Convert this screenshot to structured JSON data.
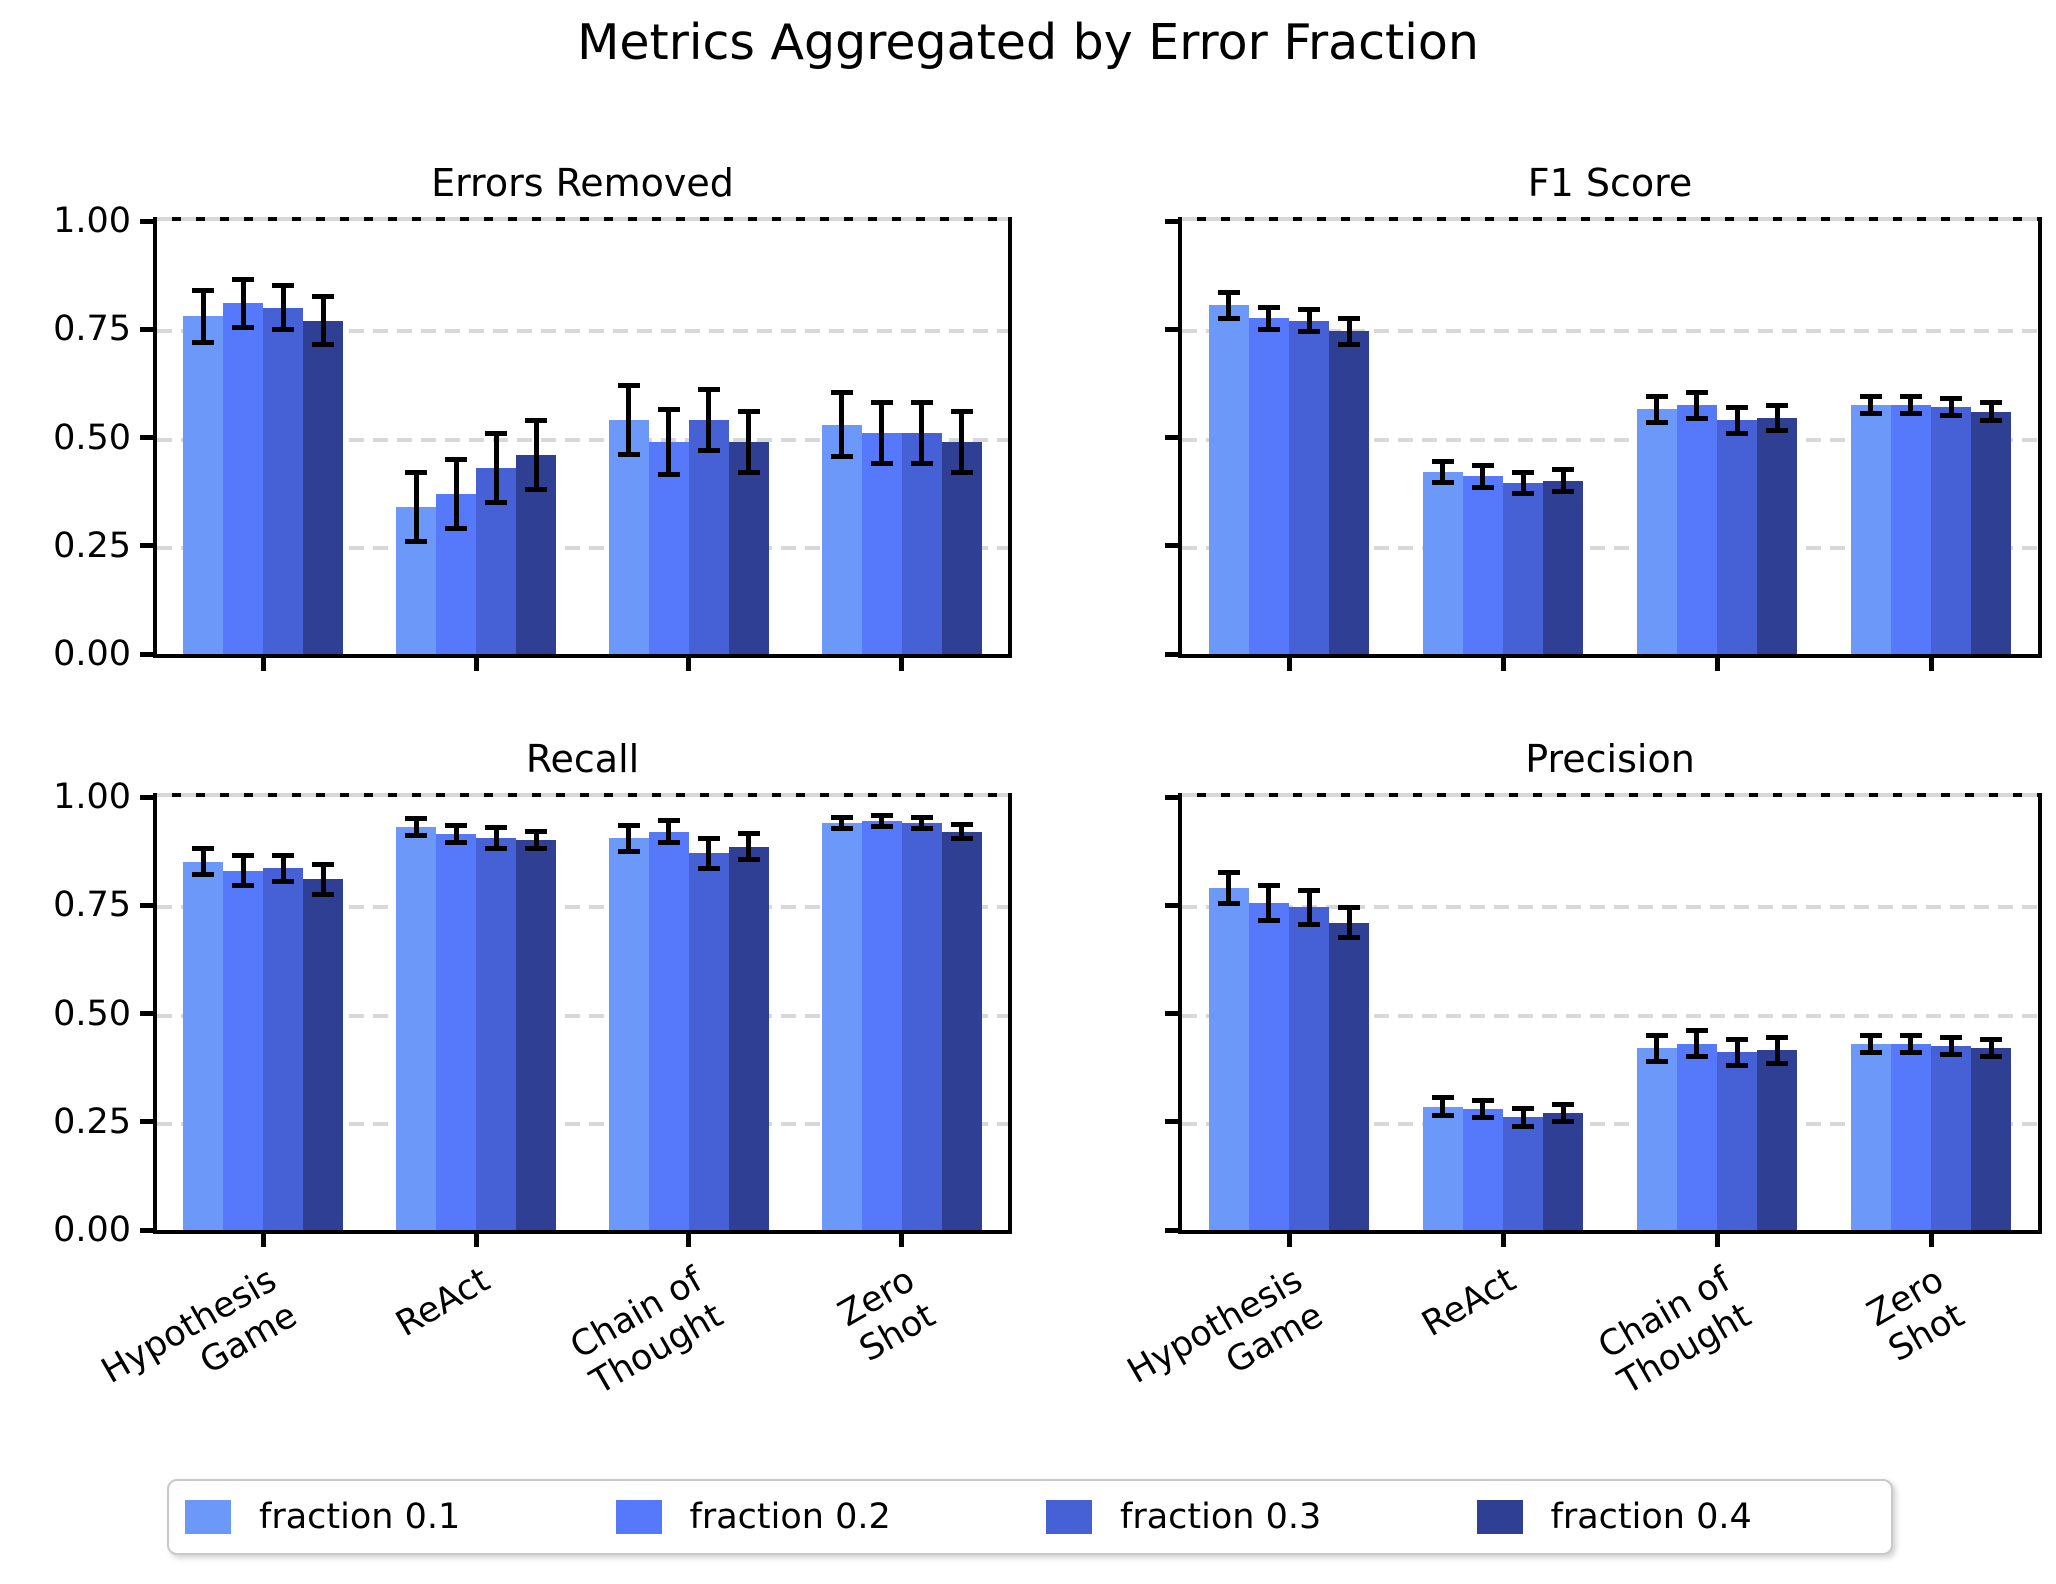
{
  "page_title": "Metrics Aggregated by Error Fraction",
  "colors": {
    "fractions": [
      "#6C98FA",
      "#5678FB",
      "#4661D6",
      "#2F4094"
    ],
    "grid": "#D8D8D8",
    "error_bar": "#000000",
    "spine": "#000000"
  },
  "axes": {
    "y_ticks": [
      "0.00",
      "0.25",
      "0.50",
      "0.75",
      "1.00"
    ],
    "ylim": [
      0,
      1
    ],
    "grid": "horizontal-dashed"
  },
  "categories": [
    "Hypothesis\nGame",
    "ReAct",
    "Chain of\nThought",
    "Zero\nShot"
  ],
  "legend": {
    "position": "bottom-center",
    "items": [
      {
        "label": "fraction 0.1",
        "color": "#6C98FA"
      },
      {
        "label": "fraction 0.2",
        "color": "#5678FB"
      },
      {
        "label": "fraction 0.3",
        "color": "#4661D6"
      },
      {
        "label": "fraction 0.4",
        "color": "#2F4094"
      }
    ]
  },
  "chart_data": [
    {
      "type": "bar",
      "title": "Errors Removed",
      "position": "top-left",
      "categories": [
        "Hypothesis\nGame",
        "ReAct",
        "Chain of\nThought",
        "Zero\nShot"
      ],
      "ylim": [
        0,
        1
      ],
      "series": [
        {
          "name": "fraction 0.1",
          "values": [
            0.78,
            0.34,
            0.54,
            0.53
          ],
          "errors": [
            0.06,
            0.08,
            0.08,
            0.075
          ]
        },
        {
          "name": "fraction 0.2",
          "values": [
            0.81,
            0.37,
            0.49,
            0.51
          ],
          "errors": [
            0.055,
            0.08,
            0.075,
            0.07
          ]
        },
        {
          "name": "fraction 0.3",
          "values": [
            0.8,
            0.43,
            0.54,
            0.51
          ],
          "errors": [
            0.05,
            0.08,
            0.07,
            0.07
          ]
        },
        {
          "name": "fraction 0.4",
          "values": [
            0.77,
            0.46,
            0.49,
            0.49
          ],
          "errors": [
            0.055,
            0.08,
            0.07,
            0.07
          ]
        }
      ]
    },
    {
      "type": "bar",
      "title": "F1 Score",
      "position": "top-right",
      "categories": [
        "Hypothesis\nGame",
        "ReAct",
        "Chain of\nThought",
        "Zero\nShot"
      ],
      "ylim": [
        0,
        1
      ],
      "series": [
        {
          "name": "fraction 0.1",
          "values": [
            0.805,
            0.42,
            0.565,
            0.575
          ],
          "errors": [
            0.03,
            0.025,
            0.03,
            0.02
          ]
        },
        {
          "name": "fraction 0.2",
          "values": [
            0.775,
            0.41,
            0.575,
            0.575
          ],
          "errors": [
            0.025,
            0.025,
            0.03,
            0.02
          ]
        },
        {
          "name": "fraction 0.3",
          "values": [
            0.77,
            0.395,
            0.54,
            0.57
          ],
          "errors": [
            0.025,
            0.025,
            0.03,
            0.02
          ]
        },
        {
          "name": "fraction 0.4",
          "values": [
            0.745,
            0.4,
            0.545,
            0.56
          ],
          "errors": [
            0.03,
            0.025,
            0.03,
            0.02
          ]
        }
      ]
    },
    {
      "type": "bar",
      "title": "Recall",
      "position": "bottom-left",
      "categories": [
        "Hypothesis\nGame",
        "ReAct",
        "Chain of\nThought",
        "Zero\nShot"
      ],
      "ylim": [
        0,
        1
      ],
      "series": [
        {
          "name": "fraction 0.1",
          "values": [
            0.85,
            0.93,
            0.905,
            0.94
          ],
          "errors": [
            0.03,
            0.02,
            0.03,
            0.013
          ]
        },
        {
          "name": "fraction 0.2",
          "values": [
            0.83,
            0.915,
            0.92,
            0.945
          ],
          "errors": [
            0.035,
            0.02,
            0.025,
            0.012
          ]
        },
        {
          "name": "fraction 0.3",
          "values": [
            0.835,
            0.905,
            0.87,
            0.94
          ],
          "errors": [
            0.03,
            0.025,
            0.035,
            0.013
          ]
        },
        {
          "name": "fraction 0.4",
          "values": [
            0.81,
            0.9,
            0.885,
            0.92
          ],
          "errors": [
            0.035,
            0.02,
            0.03,
            0.016
          ]
        }
      ]
    },
    {
      "type": "bar",
      "title": "Precision",
      "position": "bottom-right",
      "categories": [
        "Hypothesis\nGame",
        "ReAct",
        "Chain of\nThought",
        "Zero\nShot"
      ],
      "ylim": [
        0,
        1
      ],
      "series": [
        {
          "name": "fraction 0.1",
          "values": [
            0.79,
            0.285,
            0.42,
            0.43
          ],
          "errors": [
            0.035,
            0.02,
            0.03,
            0.02
          ]
        },
        {
          "name": "fraction 0.2",
          "values": [
            0.755,
            0.28,
            0.43,
            0.43
          ],
          "errors": [
            0.04,
            0.02,
            0.03,
            0.02
          ]
        },
        {
          "name": "fraction 0.3",
          "values": [
            0.745,
            0.26,
            0.41,
            0.425
          ],
          "errors": [
            0.04,
            0.02,
            0.03,
            0.02
          ]
        },
        {
          "name": "fraction 0.4",
          "values": [
            0.71,
            0.27,
            0.415,
            0.42
          ],
          "errors": [
            0.035,
            0.02,
            0.03,
            0.02
          ]
        }
      ]
    }
  ]
}
